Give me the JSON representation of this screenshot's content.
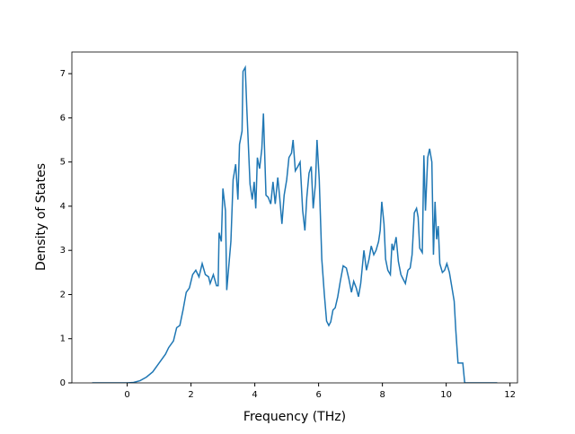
{
  "chart_data": {
    "type": "line",
    "xlabel": "Frequency (THz)",
    "ylabel": "Density of States",
    "x": [
      -1.1,
      -0.5,
      0,
      0.2,
      0.4,
      0.6,
      0.8,
      1.0,
      1.2,
      1.3,
      1.45,
      1.55,
      1.65,
      1.75,
      1.85,
      1.95,
      2.05,
      2.15,
      2.25,
      2.35,
      2.45,
      2.55,
      2.6,
      2.7,
      2.8,
      2.85,
      2.88,
      2.95,
      3.0,
      3.08,
      3.12,
      3.25,
      3.32,
      3.4,
      3.47,
      3.52,
      3.6,
      3.63,
      3.7,
      3.75,
      3.85,
      3.92,
      3.98,
      4.03,
      4.08,
      4.15,
      4.22,
      4.27,
      4.35,
      4.42,
      4.5,
      4.57,
      4.64,
      4.72,
      4.78,
      4.85,
      4.92,
      5.0,
      5.07,
      5.15,
      5.2,
      5.27,
      5.35,
      5.42,
      5.5,
      5.57,
      5.63,
      5.7,
      5.77,
      5.83,
      5.9,
      5.95,
      6.02,
      6.1,
      6.18,
      6.25,
      6.32,
      6.38,
      6.45,
      6.52,
      6.6,
      6.68,
      6.77,
      6.87,
      6.95,
      7.03,
      7.1,
      7.18,
      7.25,
      7.32,
      7.42,
      7.5,
      7.58,
      7.65,
      7.73,
      7.8,
      7.88,
      7.93,
      7.98,
      8.05,
      8.1,
      8.17,
      8.25,
      8.3,
      8.35,
      8.43,
      8.5,
      8.58,
      8.65,
      8.72,
      8.8,
      8.87,
      8.93,
      9.0,
      9.07,
      9.12,
      9.17,
      9.25,
      9.3,
      9.35,
      9.42,
      9.48,
      9.55,
      9.6,
      9.65,
      9.7,
      9.75,
      9.8,
      9.88,
      9.95,
      10.02,
      10.1,
      10.17,
      10.25,
      10.3,
      10.37,
      10.45,
      10.52,
      10.58,
      11.0,
      11.6
    ],
    "values": [
      0,
      0,
      0,
      0.01,
      0.05,
      0.13,
      0.25,
      0.45,
      0.65,
      0.8,
      0.95,
      1.25,
      1.3,
      1.65,
      2.05,
      2.15,
      2.45,
      2.55,
      2.4,
      2.7,
      2.45,
      2.4,
      2.25,
      2.45,
      2.2,
      2.2,
      3.4,
      3.2,
      4.4,
      3.9,
      2.1,
      3.2,
      4.6,
      4.95,
      4.15,
      5.4,
      5.7,
      7.05,
      7.14,
      6.2,
      4.5,
      4.15,
      4.55,
      3.95,
      5.1,
      4.85,
      5.3,
      6.1,
      4.25,
      4.2,
      4.05,
      4.55,
      4.05,
      4.65,
      4.2,
      3.6,
      4.25,
      4.6,
      5.1,
      5.2,
      5.5,
      4.8,
      4.9,
      5.0,
      3.9,
      3.45,
      4.2,
      4.75,
      4.9,
      3.95,
      4.5,
      5.5,
      4.6,
      2.8,
      2.0,
      1.4,
      1.3,
      1.38,
      1.65,
      1.7,
      1.95,
      2.3,
      2.65,
      2.6,
      2.35,
      2.05,
      2.3,
      2.15,
      1.95,
      2.25,
      3.0,
      2.55,
      2.8,
      3.1,
      2.9,
      3.0,
      3.2,
      3.45,
      4.1,
      3.6,
      2.8,
      2.55,
      2.45,
      3.15,
      3.0,
      3.3,
      2.75,
      2.45,
      2.35,
      2.25,
      2.55,
      2.6,
      2.9,
      3.85,
      3.95,
      3.75,
      3.05,
      2.95,
      5.15,
      3.9,
      5.1,
      5.3,
      5.0,
      2.9,
      4.1,
      3.25,
      3.55,
      2.7,
      2.5,
      2.55,
      2.7,
      2.5,
      2.2,
      1.85,
      1.2,
      0.45,
      0.45,
      0.45,
      0,
      0,
      0
    ],
    "color": "#1f77b4",
    "xlim": [
      -1.735,
      12.235
    ],
    "xticks": [
      0,
      2,
      4,
      6,
      8,
      10,
      12
    ],
    "ylim": [
      0,
      7.49
    ],
    "yticks": [
      0,
      1,
      2,
      3,
      4,
      5,
      6,
      7
    ]
  }
}
